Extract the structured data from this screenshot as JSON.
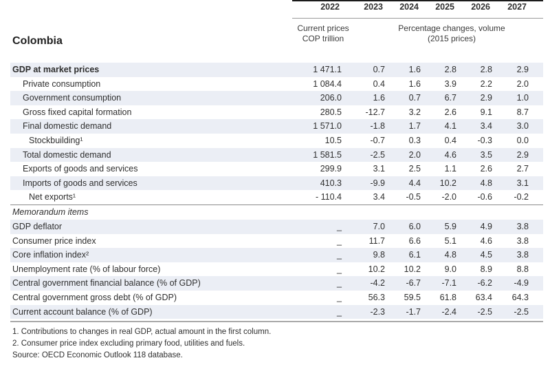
{
  "title": "Colombia",
  "header": {
    "years": [
      "2022",
      "2023",
      "2024",
      "2025",
      "2026",
      "2027"
    ],
    "unit_2022_line1": "Current prices",
    "unit_2022_line2": "COP trillion",
    "unit_pct_line1": "Percentage changes, volume",
    "unit_pct_line2": "(2015 prices)"
  },
  "table": {
    "sections": [
      {
        "name": "national-accounts",
        "rows": [
          {
            "label": "GDP at market prices",
            "indent": 0,
            "bold": true,
            "values": [
              "1 471.1",
              "0.7",
              "1.6",
              "2.8",
              "2.8",
              "2.9"
            ]
          },
          {
            "label": "Private consumption",
            "indent": 1,
            "values": [
              "1 084.4",
              "0.4",
              "1.6",
              "3.9",
              "2.2",
              "2.0"
            ]
          },
          {
            "label": "Government consumption",
            "indent": 1,
            "values": [
              "206.0",
              "1.6",
              "0.7",
              "6.7",
              "2.9",
              "1.0"
            ]
          },
          {
            "label": "Gross fixed capital formation",
            "indent": 1,
            "values": [
              "280.5",
              "-12.7",
              "3.2",
              "2.6",
              "9.1",
              "8.7"
            ]
          },
          {
            "label": "Final domestic demand",
            "indent": 1,
            "values": [
              "1 571.0",
              "-1.8",
              "1.7",
              "4.1",
              "3.4",
              "3.0"
            ]
          },
          {
            "label": "Stockbuilding¹",
            "indent": 2,
            "values": [
              "10.5",
              "-0.7",
              "0.3",
              "0.4",
              "-0.3",
              "0.0"
            ]
          },
          {
            "label": "Total domestic demand",
            "indent": 1,
            "values": [
              "1 581.5",
              "-2.5",
              "2.0",
              "4.6",
              "3.5",
              "2.9"
            ]
          },
          {
            "label": "Exports of goods and services",
            "indent": 1,
            "values": [
              "299.9",
              "3.1",
              "2.5",
              "1.1",
              "2.6",
              "2.7"
            ]
          },
          {
            "label": "Imports of goods and services",
            "indent": 1,
            "values": [
              "410.3",
              "-9.9",
              "4.4",
              "10.2",
              "4.8",
              "3.1"
            ]
          },
          {
            "label": "Net exports¹",
            "indent": 2,
            "values": [
              "- 110.4",
              "3.4",
              "-0.5",
              "-2.0",
              "-0.6",
              "-0.2"
            ]
          }
        ]
      },
      {
        "name": "memorandum",
        "heading": "Memorandum items",
        "rows": [
          {
            "label": "GDP deflator",
            "indent": 0,
            "values": [
              "_",
              "7.0",
              "6.0",
              "5.9",
              "4.9",
              "3.8"
            ]
          },
          {
            "label": "Consumer price index",
            "indent": 0,
            "values": [
              "_",
              "11.7",
              "6.6",
              "5.1",
              "4.6",
              "3.8"
            ]
          },
          {
            "label": "Core inflation index²",
            "indent": 0,
            "values": [
              "_",
              "9.8",
              "6.1",
              "4.8",
              "4.5",
              "3.8"
            ]
          },
          {
            "label": "Unemployment rate (% of labour force)",
            "indent": 0,
            "values": [
              "_",
              "10.2",
              "10.2",
              "9.0",
              "8.9",
              "8.8"
            ]
          },
          {
            "label": "Central government financial balance (% of GDP)",
            "indent": 0,
            "values": [
              "_",
              "-4.2",
              "-6.7",
              "-7.1",
              "-6.2",
              "-4.9"
            ]
          },
          {
            "label": "Central government gross debt (% of GDP)",
            "indent": 0,
            "values": [
              "_",
              "56.3",
              "59.5",
              "61.8",
              "63.4",
              "64.3"
            ]
          },
          {
            "label": "Current account balance (% of GDP)",
            "indent": 0,
            "values": [
              "_",
              "-2.3",
              "-1.7",
              "-2.4",
              "-2.5",
              "-2.5"
            ]
          }
        ]
      }
    ]
  },
  "footnotes": [
    "1. Contributions to changes in real GDP, actual amount in the first column.",
    "2. Consumer price index excluding primary food, utilities and fuels."
  ],
  "source": "Source: OECD Economic Outlook 118 database.",
  "colors": {
    "row_shade": "#ebeef5",
    "text": "#2e2e2e",
    "rule_dark": "#1a1a1a",
    "rule_gray": "#9b9b9b",
    "rule_bottom": "#a9a9a9"
  }
}
